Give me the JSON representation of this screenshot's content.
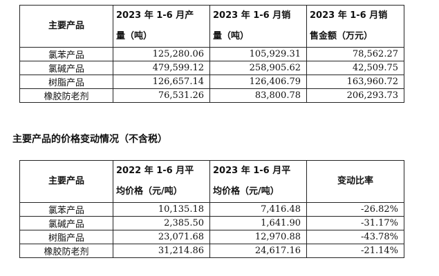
{
  "table1": {
    "headers": [
      {
        "lines": [
          "主要产品"
        ]
      },
      {
        "lines": [
          "2023 年 1-6 月产",
          "量（吨）"
        ]
      },
      {
        "lines": [
          "2023 年 1-6 月销",
          "量（吨）"
        ]
      },
      {
        "lines": [
          "2023 年 1-6 月销",
          "售金额（万元）"
        ]
      }
    ],
    "rows": [
      [
        "氯苯产品",
        "125,280.06",
        "105,929.31",
        "78,562.27"
      ],
      [
        "氯碱产品",
        "479,599.12",
        "258,905.62",
        "42,509.75"
      ],
      [
        "树脂产品",
        "126,657.14",
        "126,406.79",
        "163,960.72"
      ],
      [
        "橡胶防老剂",
        "76,531.26",
        "83,800.78",
        "206,293.73"
      ]
    ]
  },
  "section_title": "主要产品的价格变动情况（不含税）",
  "table2": {
    "headers": [
      {
        "lines": [
          "主要产品"
        ]
      },
      {
        "lines": [
          "2022 年 1-6 月平",
          "均价格（元/吨）"
        ]
      },
      {
        "lines": [
          "2023 年 1-6 月平",
          "均价格（元/吨）"
        ]
      },
      {
        "lines": [
          "变动比率"
        ]
      }
    ],
    "rows": [
      [
        "氯苯产品",
        "10,135.18",
        "7,416.48",
        "-26.82%"
      ],
      [
        "氯碱产品",
        "2,385.50",
        "1,641.90",
        "-31.17%"
      ],
      [
        "树脂产品",
        "23,071.68",
        "12,970.88",
        "-43.78%"
      ],
      [
        "橡胶防老剂",
        "31,214.86",
        "24,617.16",
        "-21.14%"
      ]
    ]
  }
}
